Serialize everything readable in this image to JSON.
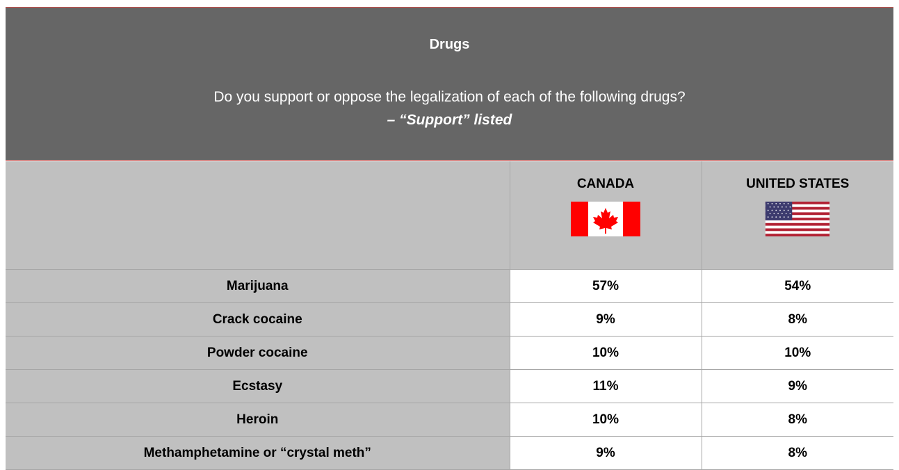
{
  "banner": {
    "title": "Drugs",
    "question": "Do you support or oppose the legalization of each of the following drugs?",
    "subtitle": "– “Support” listed"
  },
  "columns": [
    {
      "label": "CANADA",
      "flag_icon": "canada-flag-icon"
    },
    {
      "label": "UNITED STATES",
      "flag_icon": "usa-flag-icon"
    }
  ],
  "rows": [
    {
      "label": "Marijuana",
      "canada": "57%",
      "usa": "54%"
    },
    {
      "label": "Crack cocaine",
      "canada": "9%",
      "usa": "8%"
    },
    {
      "label": "Powder cocaine",
      "canada": "10%",
      "usa": "10%"
    },
    {
      "label": "Ecstasy",
      "canada": "11%",
      "usa": "9%"
    },
    {
      "label": "Heroin",
      "canada": "10%",
      "usa": "8%"
    },
    {
      "label": "Methamphetamine or “crystal meth”",
      "canada": "9%",
      "usa": "8%"
    }
  ],
  "colors": {
    "banner_bg": "#666666",
    "banner_border": "#c0504d",
    "header_bg": "#c0c0c0",
    "flag_red": "#ff0000",
    "us_blue": "#3c3b6e"
  }
}
